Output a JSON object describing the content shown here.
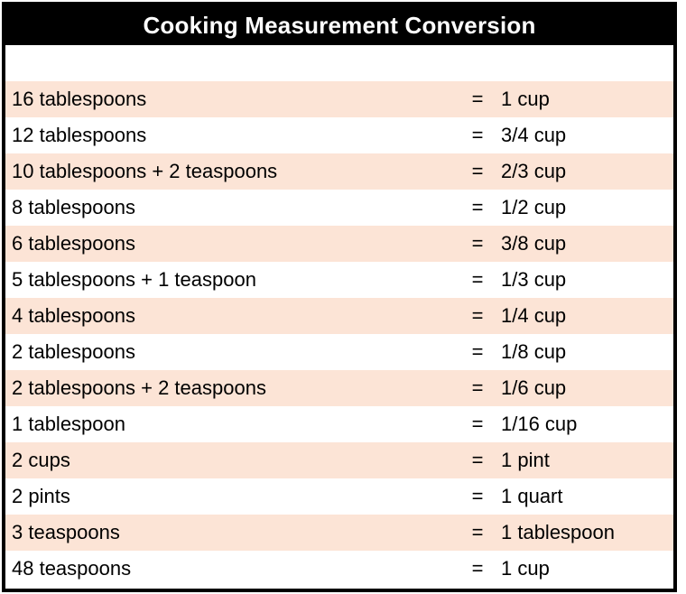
{
  "title": "Cooking Measurement Conversion",
  "equals_sign": "=",
  "colors": {
    "header_bg": "#000000",
    "header_text": "#FFFFFF",
    "row_alt": "#FCE4D6",
    "row_plain": "#FFFFFF",
    "border": "#000000",
    "text": "#000000"
  },
  "rows": [
    {
      "from": "16 tablespoons",
      "to": "1 cup"
    },
    {
      "from": "12 tablespoons",
      "to": "3/4 cup"
    },
    {
      "from": "10 tablespoons + 2 teaspoons",
      "to": "2/3 cup"
    },
    {
      "from": "8 tablespoons",
      "to": "1/2 cup"
    },
    {
      "from": "6 tablespoons",
      "to": "3/8 cup"
    },
    {
      "from": "5 tablespoons + 1 teaspoon",
      "to": "1/3 cup"
    },
    {
      "from": "4 tablespoons",
      "to": "1/4 cup"
    },
    {
      "from": "2 tablespoons",
      "to": "1/8 cup"
    },
    {
      "from": "2 tablespoons + 2 teaspoons",
      "to": "1/6 cup"
    },
    {
      "from": "1 tablespoon",
      "to": "1/16 cup"
    },
    {
      "from": "2 cups",
      "to": "1 pint"
    },
    {
      "from": "2 pints",
      "to": "1 quart"
    },
    {
      "from": "3 teaspoons",
      "to": "1 tablespoon"
    },
    {
      "from": "48 teaspoons",
      "to": "1 cup"
    }
  ]
}
